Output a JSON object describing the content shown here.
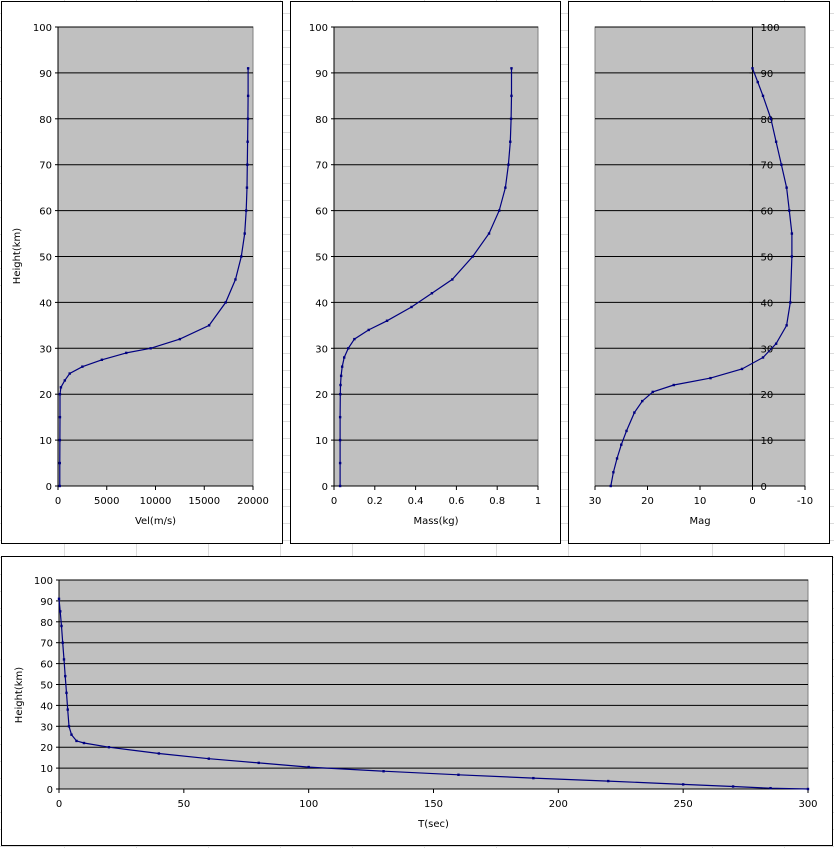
{
  "colors": {
    "plot_bg": "#c0c0c0",
    "series": "#000080",
    "grid": "#000000",
    "sheet_grid": "#dcdcdc"
  },
  "chart_data": [
    {
      "type": "line",
      "xlabel": "Vel(m/s)",
      "ylabel": "Height(km)",
      "xlim": [
        0,
        20000
      ],
      "ylim": [
        0,
        100
      ],
      "xticks": [
        0,
        5000,
        10000,
        15000,
        20000
      ],
      "yticks": [
        0,
        10,
        20,
        30,
        40,
        50,
        60,
        70,
        80,
        90,
        100
      ],
      "grid": "horizontal",
      "series": [
        {
          "x": [
            19500,
            19500,
            19480,
            19450,
            19420,
            19380,
            19300,
            19150,
            18800,
            18200,
            17200,
            15500,
            12500,
            9500,
            7000,
            4500,
            2500,
            1200,
            700,
            300,
            200,
            200,
            190,
            180,
            180
          ],
          "y": [
            91,
            85,
            80,
            75,
            70,
            65,
            60,
            55,
            50,
            45,
            40,
            35,
            32,
            30,
            29,
            27.5,
            26,
            24.5,
            23,
            21.5,
            20,
            15,
            10,
            5,
            0
          ]
        }
      ]
    },
    {
      "type": "line",
      "xlabel": "Mass(kg)",
      "ylabel": "",
      "xlim": [
        0,
        1
      ],
      "ylim": [
        0,
        100
      ],
      "xticks": [
        0,
        0.2,
        0.4,
        0.6,
        0.8,
        1
      ],
      "yticks": [
        0,
        10,
        20,
        30,
        40,
        50,
        60,
        70,
        80,
        90,
        100
      ],
      "grid": "horizontal",
      "series": [
        {
          "x": [
            0.87,
            0.87,
            0.868,
            0.864,
            0.855,
            0.84,
            0.81,
            0.76,
            0.68,
            0.58,
            0.48,
            0.38,
            0.26,
            0.17,
            0.1,
            0.07,
            0.05,
            0.04,
            0.035,
            0.032,
            0.031,
            0.03,
            0.03,
            0.03,
            0.03
          ],
          "y": [
            91,
            85,
            80,
            75,
            70,
            65,
            60,
            55,
            50,
            45,
            42,
            39,
            36,
            34,
            32,
            30,
            28,
            26,
            24,
            22,
            20,
            15,
            10,
            5,
            0
          ]
        }
      ]
    },
    {
      "type": "line",
      "xlabel": "Mag",
      "ylabel": "",
      "xlim": [
        30,
        -10
      ],
      "ylim": [
        0,
        100
      ],
      "xticks": [
        30,
        20,
        10,
        0,
        -10
      ],
      "yticks": [
        0,
        10,
        20,
        30,
        40,
        50,
        60,
        70,
        80,
        90,
        100
      ],
      "grid": "horizontal",
      "series": [
        {
          "x": [
            0,
            -1,
            -2,
            -3.5,
            -4.5,
            -5.5,
            -6.5,
            -7,
            -7.5,
            -7.5,
            -7.2,
            -6.5,
            -4.5,
            -2,
            2,
            8,
            15,
            19,
            21,
            22.5,
            24,
            25,
            25.8,
            26.5,
            27
          ],
          "y": [
            91,
            88,
            85,
            80,
            75,
            70,
            65,
            60,
            55,
            50,
            40,
            35,
            31,
            28,
            25.5,
            23.5,
            22,
            20.5,
            18.5,
            16,
            12,
            9,
            6,
            3,
            0
          ]
        }
      ]
    },
    {
      "type": "line",
      "xlabel": "T(sec)",
      "ylabel": "Height(km)",
      "xlim": [
        0,
        300
      ],
      "ylim": [
        0,
        100
      ],
      "xticks": [
        0,
        50,
        100,
        150,
        200,
        250,
        300
      ],
      "yticks": [
        0,
        10,
        20,
        30,
        40,
        50,
        60,
        70,
        80,
        90,
        100
      ],
      "grid": "horizontal",
      "series": [
        {
          "x": [
            0,
            0.5,
            1,
            1.5,
            2,
            2.5,
            3,
            3.5,
            4,
            5,
            7,
            10,
            20,
            40,
            60,
            80,
            100,
            130,
            160,
            190,
            220,
            250,
            270,
            285,
            300
          ],
          "y": [
            91,
            85,
            78,
            70,
            62,
            54,
            46,
            38,
            30,
            26,
            23,
            22,
            20,
            17,
            14.5,
            12.5,
            10.5,
            8.5,
            6.8,
            5.2,
            3.8,
            2.2,
            1.2,
            0.4,
            0
          ]
        }
      ]
    }
  ]
}
